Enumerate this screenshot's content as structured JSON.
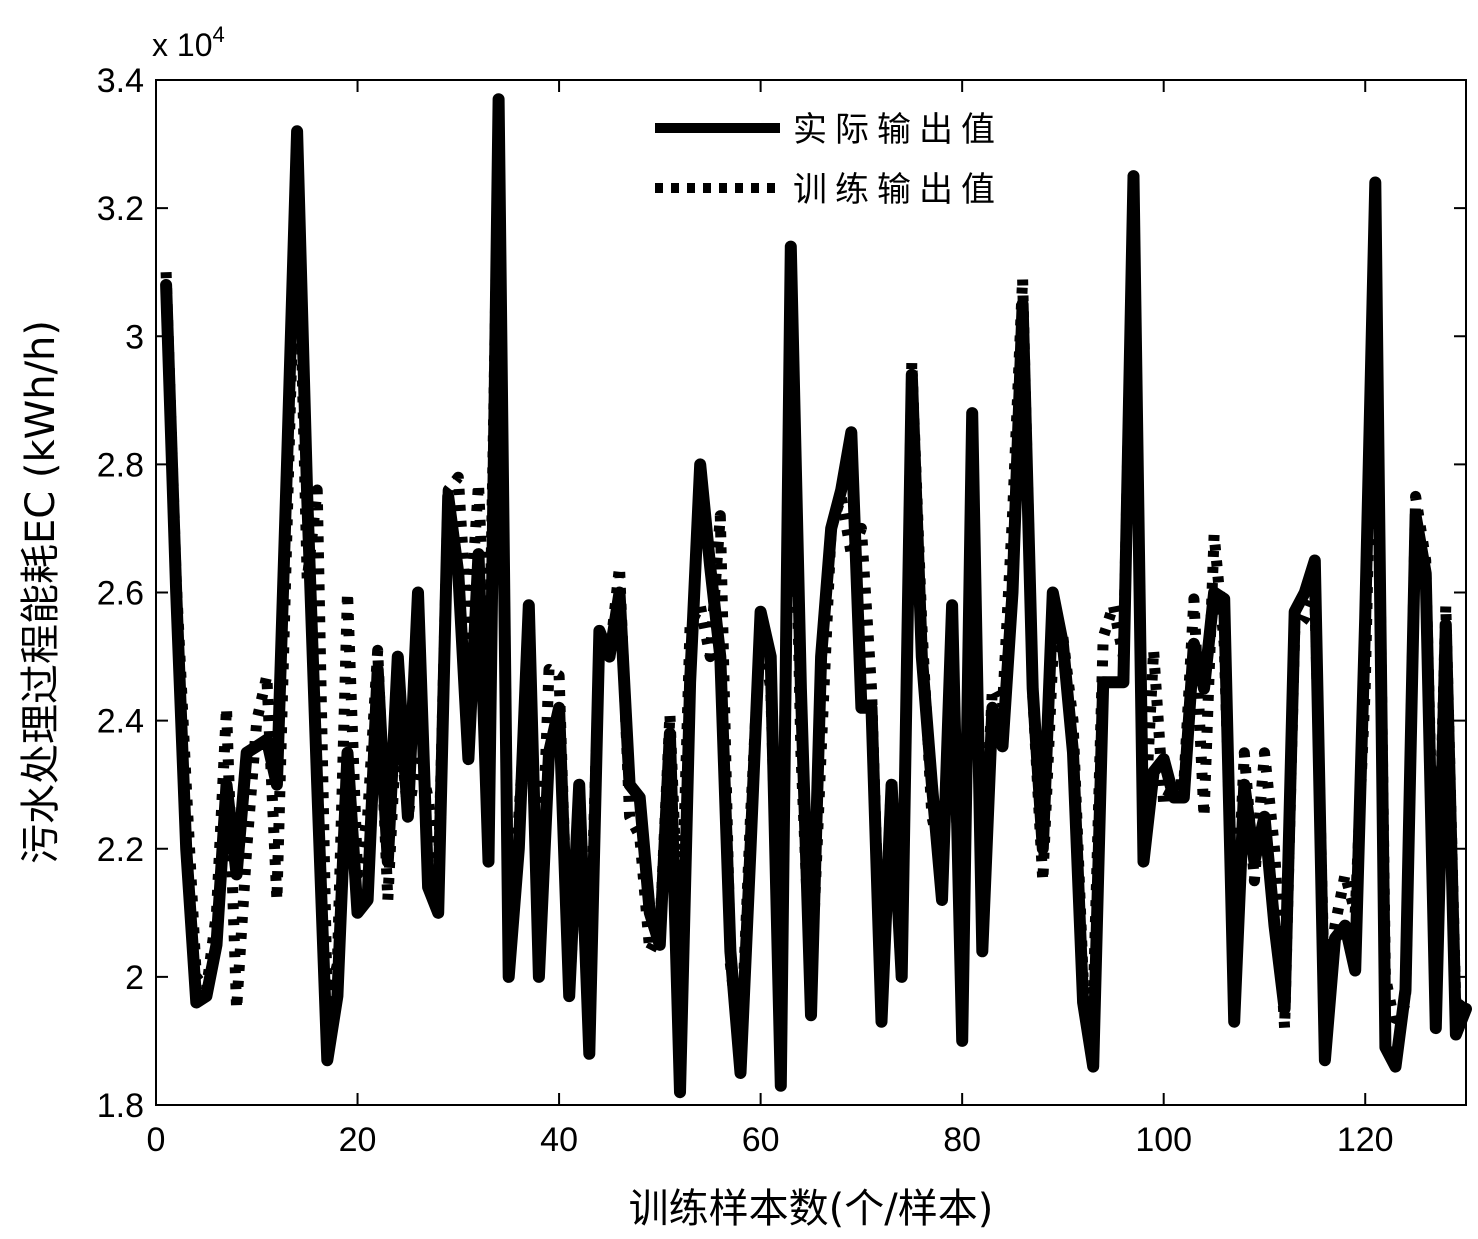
{
  "chart_data": {
    "type": "line",
    "title": "",
    "xlabel": "训练样本数(个/样本)",
    "ylabel": "污水处理过程能耗EC (kWh/h)",
    "y_multiplier_base": "x 10",
    "y_multiplier_exp": "4",
    "xlim": [
      0,
      130
    ],
    "ylim": [
      1.8,
      3.4
    ],
    "xticks": [
      0,
      20,
      40,
      60,
      80,
      100,
      120
    ],
    "yticks": [
      1.8,
      2.0,
      2.2,
      2.4,
      2.6,
      2.8,
      3.0,
      3.2,
      3.4
    ],
    "ytick_labels": [
      "1.8",
      "2",
      "2.2",
      "2.4",
      "2.6",
      "2.8",
      "3",
      "3.2",
      "3.4"
    ],
    "grid": false,
    "legend_position": "top-center",
    "series": [
      {
        "name": "实际输出值",
        "style": "solid",
        "x": [
          1,
          2,
          3,
          4,
          5,
          6,
          7,
          8,
          9,
          10,
          11,
          12,
          13,
          14,
          15,
          16,
          17,
          18,
          19,
          20,
          21,
          22,
          23,
          24,
          25,
          26,
          27,
          28,
          29,
          30,
          31,
          32,
          33,
          34,
          35,
          36,
          37,
          38,
          39,
          40,
          41,
          42,
          43,
          44,
          45,
          46,
          47,
          48,
          49,
          50,
          51,
          52,
          53,
          54,
          55,
          56,
          57,
          58,
          59,
          60,
          61,
          62,
          63,
          64,
          65,
          66,
          67,
          68,
          69,
          70,
          71,
          72,
          73,
          74,
          75,
          76,
          77,
          78,
          79,
          80,
          81,
          82,
          83,
          84,
          85,
          86,
          87,
          88,
          89,
          90,
          91,
          92,
          93,
          94,
          95,
          96,
          97,
          98,
          99,
          100,
          101,
          102,
          103,
          104,
          105,
          106,
          107,
          108,
          109,
          110,
          111,
          112,
          113,
          114,
          115,
          116,
          117,
          118,
          119,
          120,
          121,
          122,
          123,
          124,
          125,
          126,
          127,
          128,
          129,
          130
        ],
        "values": [
          3.08,
          2.6,
          2.2,
          1.96,
          1.97,
          2.05,
          2.3,
          2.16,
          2.35,
          2.36,
          2.37,
          2.3,
          2.8,
          3.32,
          2.75,
          2.3,
          1.87,
          1.97,
          2.35,
          2.1,
          2.12,
          2.48,
          2.18,
          2.5,
          2.25,
          2.6,
          2.14,
          2.1,
          2.75,
          2.63,
          2.34,
          2.66,
          2.18,
          3.37,
          2.0,
          2.2,
          2.58,
          2.0,
          2.35,
          2.42,
          1.97,
          2.3,
          1.88,
          2.54,
          2.5,
          2.6,
          2.3,
          2.28,
          2.1,
          2.05,
          2.38,
          1.82,
          2.46,
          2.8,
          2.64,
          2.5,
          2.04,
          1.85,
          2.2,
          2.57,
          2.5,
          1.83,
          3.14,
          2.45,
          1.94,
          2.5,
          2.7,
          2.76,
          2.85,
          2.42,
          2.42,
          1.93,
          2.3,
          2.0,
          2.94,
          2.5,
          2.3,
          2.12,
          2.58,
          1.9,
          2.88,
          2.04,
          2.42,
          2.36,
          2.6,
          3.05,
          2.45,
          2.2,
          2.6,
          2.52,
          2.35,
          1.96,
          1.86,
          2.46,
          2.46,
          2.46,
          3.25,
          2.18,
          2.32,
          2.34,
          2.28,
          2.28,
          2.52,
          2.45,
          2.6,
          2.59,
          1.93,
          2.3,
          2.18,
          2.25,
          2.08,
          1.95,
          2.57,
          2.6,
          2.65,
          1.87,
          2.06,
          2.08,
          2.01,
          2.56,
          3.24,
          1.89,
          1.86,
          1.98,
          2.72,
          2.63,
          1.92,
          2.55,
          1.91,
          1.95
        ]
      },
      {
        "name": "训练输出值",
        "style": "dotted",
        "x": [
          1,
          2,
          3,
          4,
          5,
          6,
          7,
          8,
          9,
          10,
          11,
          12,
          13,
          14,
          15,
          16,
          17,
          18,
          19,
          20,
          21,
          22,
          23,
          24,
          25,
          26,
          27,
          28,
          29,
          30,
          31,
          32,
          33,
          34,
          35,
          36,
          37,
          38,
          39,
          40,
          41,
          42,
          43,
          44,
          45,
          46,
          47,
          48,
          49,
          50,
          51,
          52,
          53,
          54,
          55,
          56,
          57,
          58,
          59,
          60,
          61,
          62,
          63,
          64,
          65,
          66,
          67,
          68,
          69,
          70,
          71,
          72,
          73,
          74,
          75,
          76,
          77,
          78,
          79,
          80,
          81,
          82,
          83,
          84,
          85,
          86,
          87,
          88,
          89,
          90,
          91,
          92,
          93,
          94,
          95,
          96,
          97,
          98,
          99,
          100,
          101,
          102,
          103,
          104,
          105,
          106,
          107,
          108,
          109,
          110,
          111,
          112,
          113,
          114,
          115,
          116,
          117,
          118,
          119,
          120,
          121,
          122,
          123,
          124,
          125,
          126,
          127,
          128,
          129,
          130
        ],
        "values": [
          3.1,
          2.62,
          2.3,
          2.0,
          1.98,
          2.1,
          2.42,
          1.95,
          2.2,
          2.4,
          2.47,
          2.12,
          2.7,
          3.28,
          2.62,
          2.76,
          1.95,
          2.02,
          2.6,
          2.16,
          2.25,
          2.51,
          2.12,
          2.43,
          2.25,
          2.35,
          2.28,
          2.15,
          2.76,
          2.78,
          2.52,
          2.77,
          2.4,
          3.33,
          2.05,
          2.25,
          2.5,
          2.05,
          2.48,
          2.47,
          1.97,
          2.26,
          2.0,
          2.52,
          2.5,
          2.64,
          2.25,
          2.22,
          2.04,
          2.07,
          2.41,
          2.01,
          2.55,
          2.58,
          2.5,
          2.72,
          2.02,
          1.88,
          2.25,
          2.55,
          2.45,
          1.92,
          3.1,
          2.35,
          1.98,
          2.35,
          2.7,
          2.75,
          2.66,
          2.7,
          2.45,
          1.95,
          2.31,
          1.99,
          2.96,
          2.55,
          2.25,
          2.18,
          2.48,
          1.96,
          2.8,
          2.12,
          2.45,
          2.42,
          2.72,
          3.09,
          2.44,
          2.15,
          2.5,
          2.53,
          2.4,
          2.0,
          1.96,
          2.53,
          2.58,
          2.5,
          3.24,
          2.2,
          2.51,
          2.27,
          2.3,
          2.3,
          2.59,
          2.25,
          2.69,
          2.52,
          2.0,
          2.35,
          2.15,
          2.35,
          2.2,
          1.92,
          2.54,
          2.56,
          2.6,
          1.95,
          2.08,
          2.16,
          2.1,
          2.45,
          3.18,
          2.0,
          1.92,
          1.96,
          2.75,
          2.65,
          2.0,
          2.58,
          1.95,
          1.97
        ]
      }
    ]
  },
  "colors": {
    "line": "#000000",
    "background": "#ffffff"
  }
}
